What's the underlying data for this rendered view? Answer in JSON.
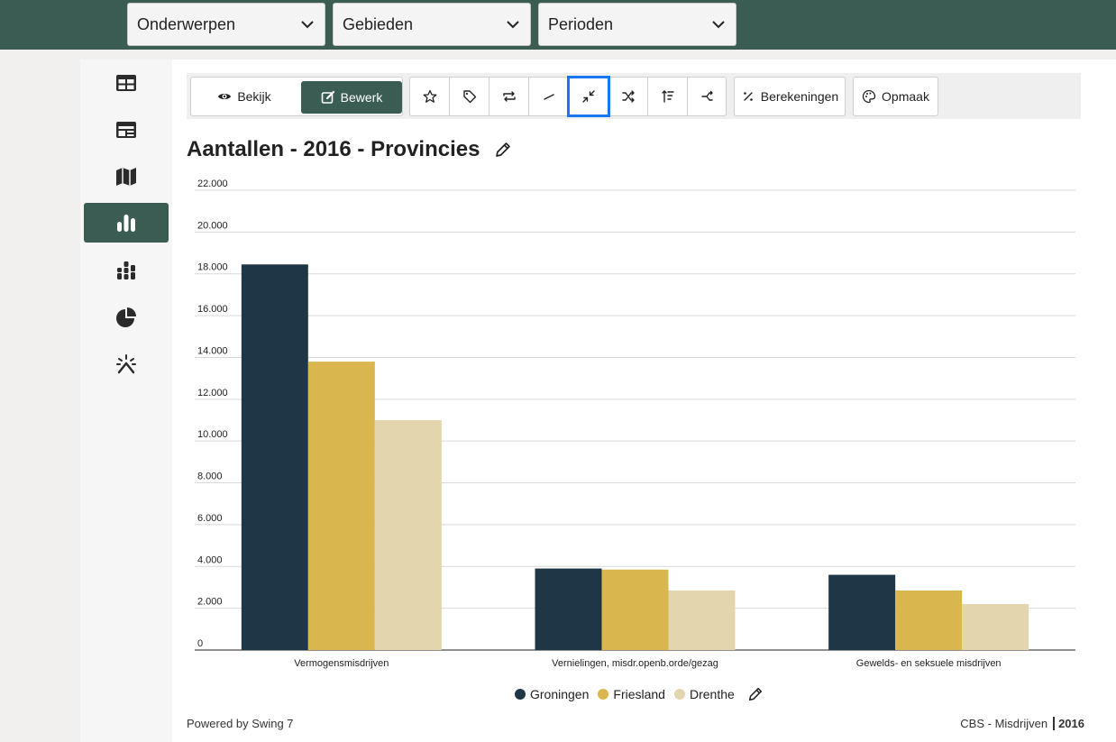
{
  "filters": [
    {
      "label": "Onderwerpen"
    },
    {
      "label": "Gebieden"
    },
    {
      "label": "Perioden"
    }
  ],
  "sidebar": {
    "items": [
      {
        "icon": "table-icon"
      },
      {
        "icon": "dashboard-icon"
      },
      {
        "icon": "map-icon"
      },
      {
        "icon": "bar-chart-icon",
        "active": true
      },
      {
        "icon": "stacked-chart-icon"
      },
      {
        "icon": "pie-chart-icon"
      },
      {
        "icon": "magic-wand-icon"
      }
    ]
  },
  "toolbar": {
    "view_label": "Bekijk",
    "edit_label": "Bewerk",
    "calc_label": "Berekeningen",
    "style_label": "Opmaak",
    "icon_buttons": [
      "star-icon",
      "tag-icon",
      "swap-icon",
      "line-icon",
      "collapse-icon",
      "shuffle-icon",
      "sort-icon",
      "merge-icon"
    ],
    "selected_icon": "collapse-icon"
  },
  "page_title": "Aantallen - 2016 - Provincies",
  "chart_data": {
    "type": "bar",
    "title": "Aantallen - 2016 - Provincies",
    "categories": [
      "Vermogensmisdrijven",
      "Vernielingen, misdr.openb.orde/gezag",
      "Gewelds- en seksuele misdrijven"
    ],
    "series": [
      {
        "name": "Groningen",
        "color": "#1f3646",
        "values": [
          18450,
          3900,
          3600
        ]
      },
      {
        "name": "Friesland",
        "color": "#dab74e",
        "values": [
          13800,
          3850,
          2850
        ]
      },
      {
        "name": "Drenthe",
        "color": "#e3d5ad",
        "values": [
          11000,
          2850,
          2200
        ]
      }
    ],
    "ylim": [
      0,
      22000
    ],
    "yticks": [
      "0",
      "2.000",
      "4.000",
      "6.000",
      "8.000",
      "10.000",
      "12.000",
      "14.000",
      "16.000",
      "18.000",
      "20.000",
      "22.000"
    ],
    "ytick_values": [
      0,
      2000,
      4000,
      6000,
      8000,
      10000,
      12000,
      14000,
      16000,
      18000,
      20000,
      22000
    ],
    "grid": true,
    "legend": "bottom"
  },
  "footer": {
    "powered": "Powered by Swing 7",
    "source": "CBS - Misdrijven",
    "year": "2016"
  }
}
